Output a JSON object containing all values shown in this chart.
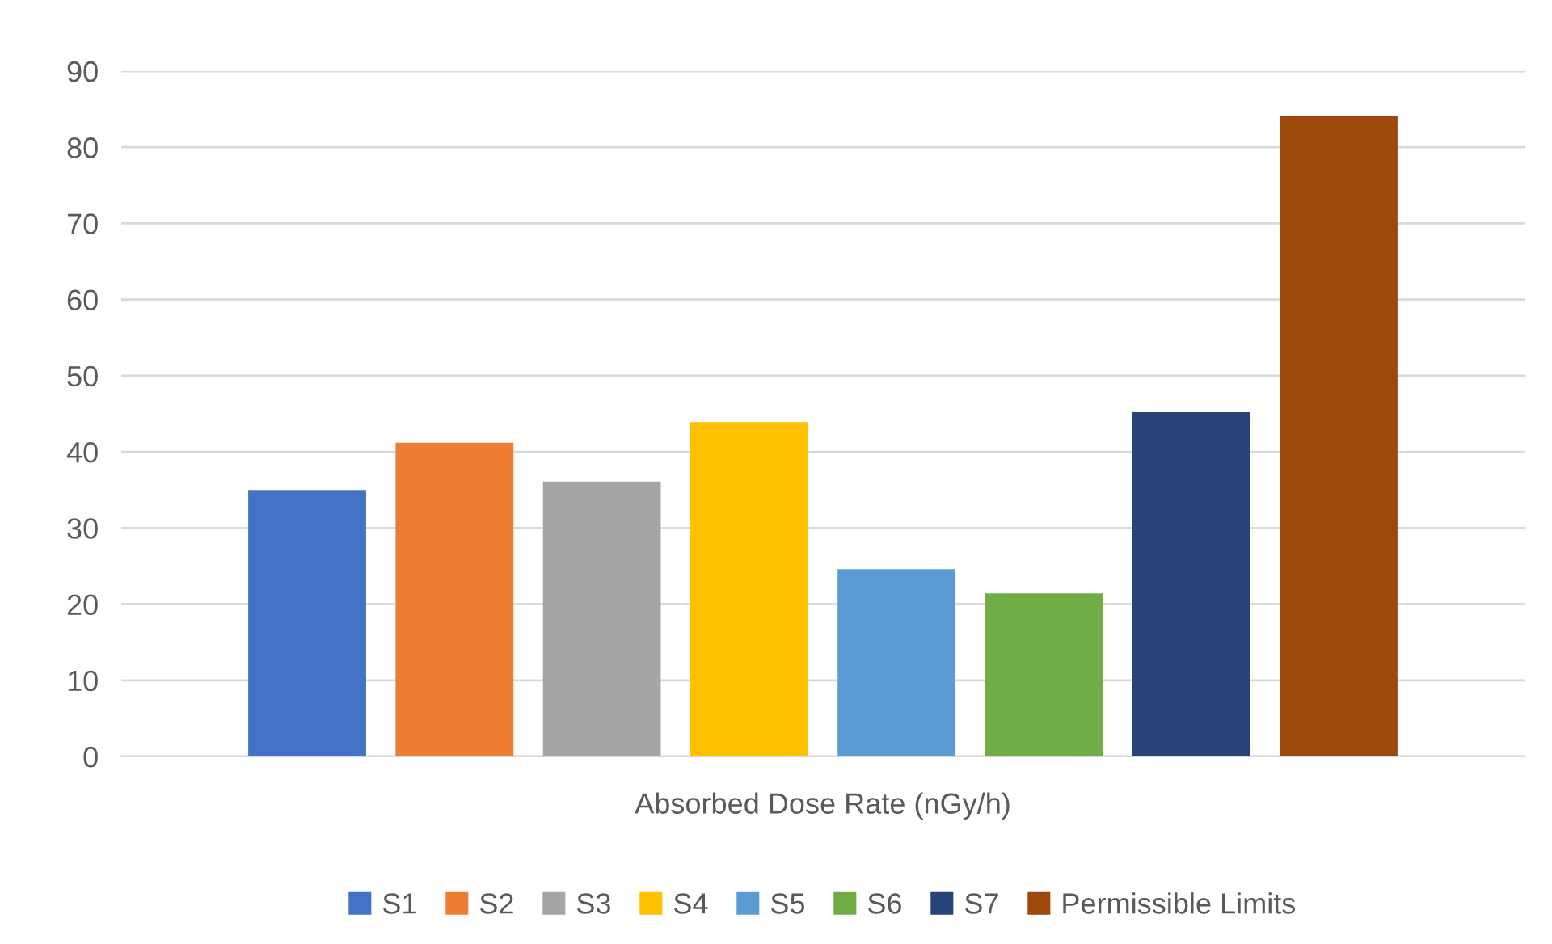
{
  "chart_data": {
    "type": "bar",
    "categories": [
      "Absorbed Dose Rate (nGy/h)"
    ],
    "series": [
      {
        "name": "S1",
        "color": "#4472c4",
        "values": [
          35.0
        ]
      },
      {
        "name": "S2",
        "color": "#ed7d31",
        "values": [
          41.2
        ]
      },
      {
        "name": "S3",
        "color": "#a5a5a5",
        "values": [
          36.1
        ]
      },
      {
        "name": "S4",
        "color": "#ffc000",
        "values": [
          43.9
        ]
      },
      {
        "name": "S5",
        "color": "#5b9bd5",
        "values": [
          24.6
        ]
      },
      {
        "name": "S6",
        "color": "#70ad47",
        "values": [
          21.4
        ]
      },
      {
        "name": "S7",
        "color": "#264478",
        "values": [
          45.2
        ]
      },
      {
        "name": "Permissible Limits",
        "color": "#9e480e",
        "values": [
          84.1
        ]
      }
    ],
    "ylim": [
      0,
      90
    ],
    "yticks": [
      0,
      10,
      20,
      30,
      40,
      50,
      60,
      70,
      80,
      90
    ],
    "grid": "y",
    "legend": "bottom"
  }
}
